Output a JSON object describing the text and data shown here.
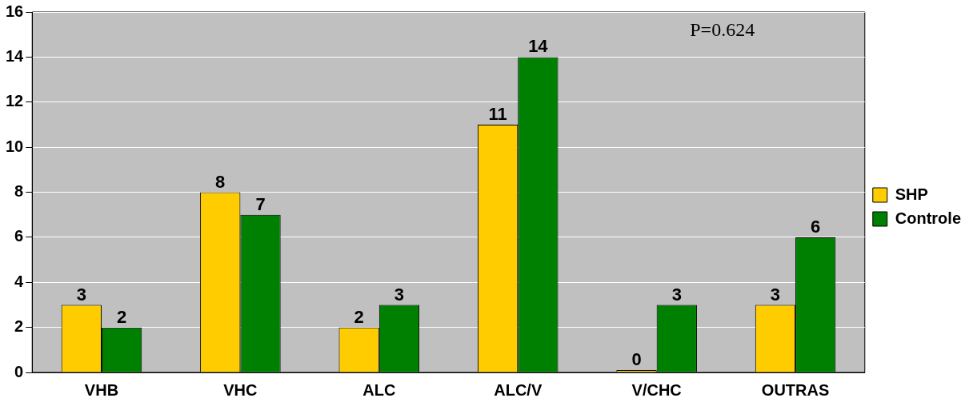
{
  "chart_data": {
    "type": "bar",
    "categories": [
      "VHB",
      "VHC",
      "ALC",
      "ALC/V",
      "V/CHC",
      "OUTRAS"
    ],
    "series": [
      {
        "name": "SHP",
        "color": "#ffcc00",
        "values": [
          3,
          8,
          2,
          11,
          0,
          3
        ]
      },
      {
        "name": "Controle",
        "color": "#008000",
        "values": [
          2,
          7,
          3,
          14,
          3,
          6
        ]
      }
    ],
    "ylim": [
      0,
      16
    ],
    "yticks": [
      0,
      2,
      4,
      6,
      8,
      10,
      12,
      14,
      16
    ],
    "grid": "y",
    "legend": "right",
    "data_labels": true,
    "annotations": [
      "P=0.624"
    ]
  }
}
